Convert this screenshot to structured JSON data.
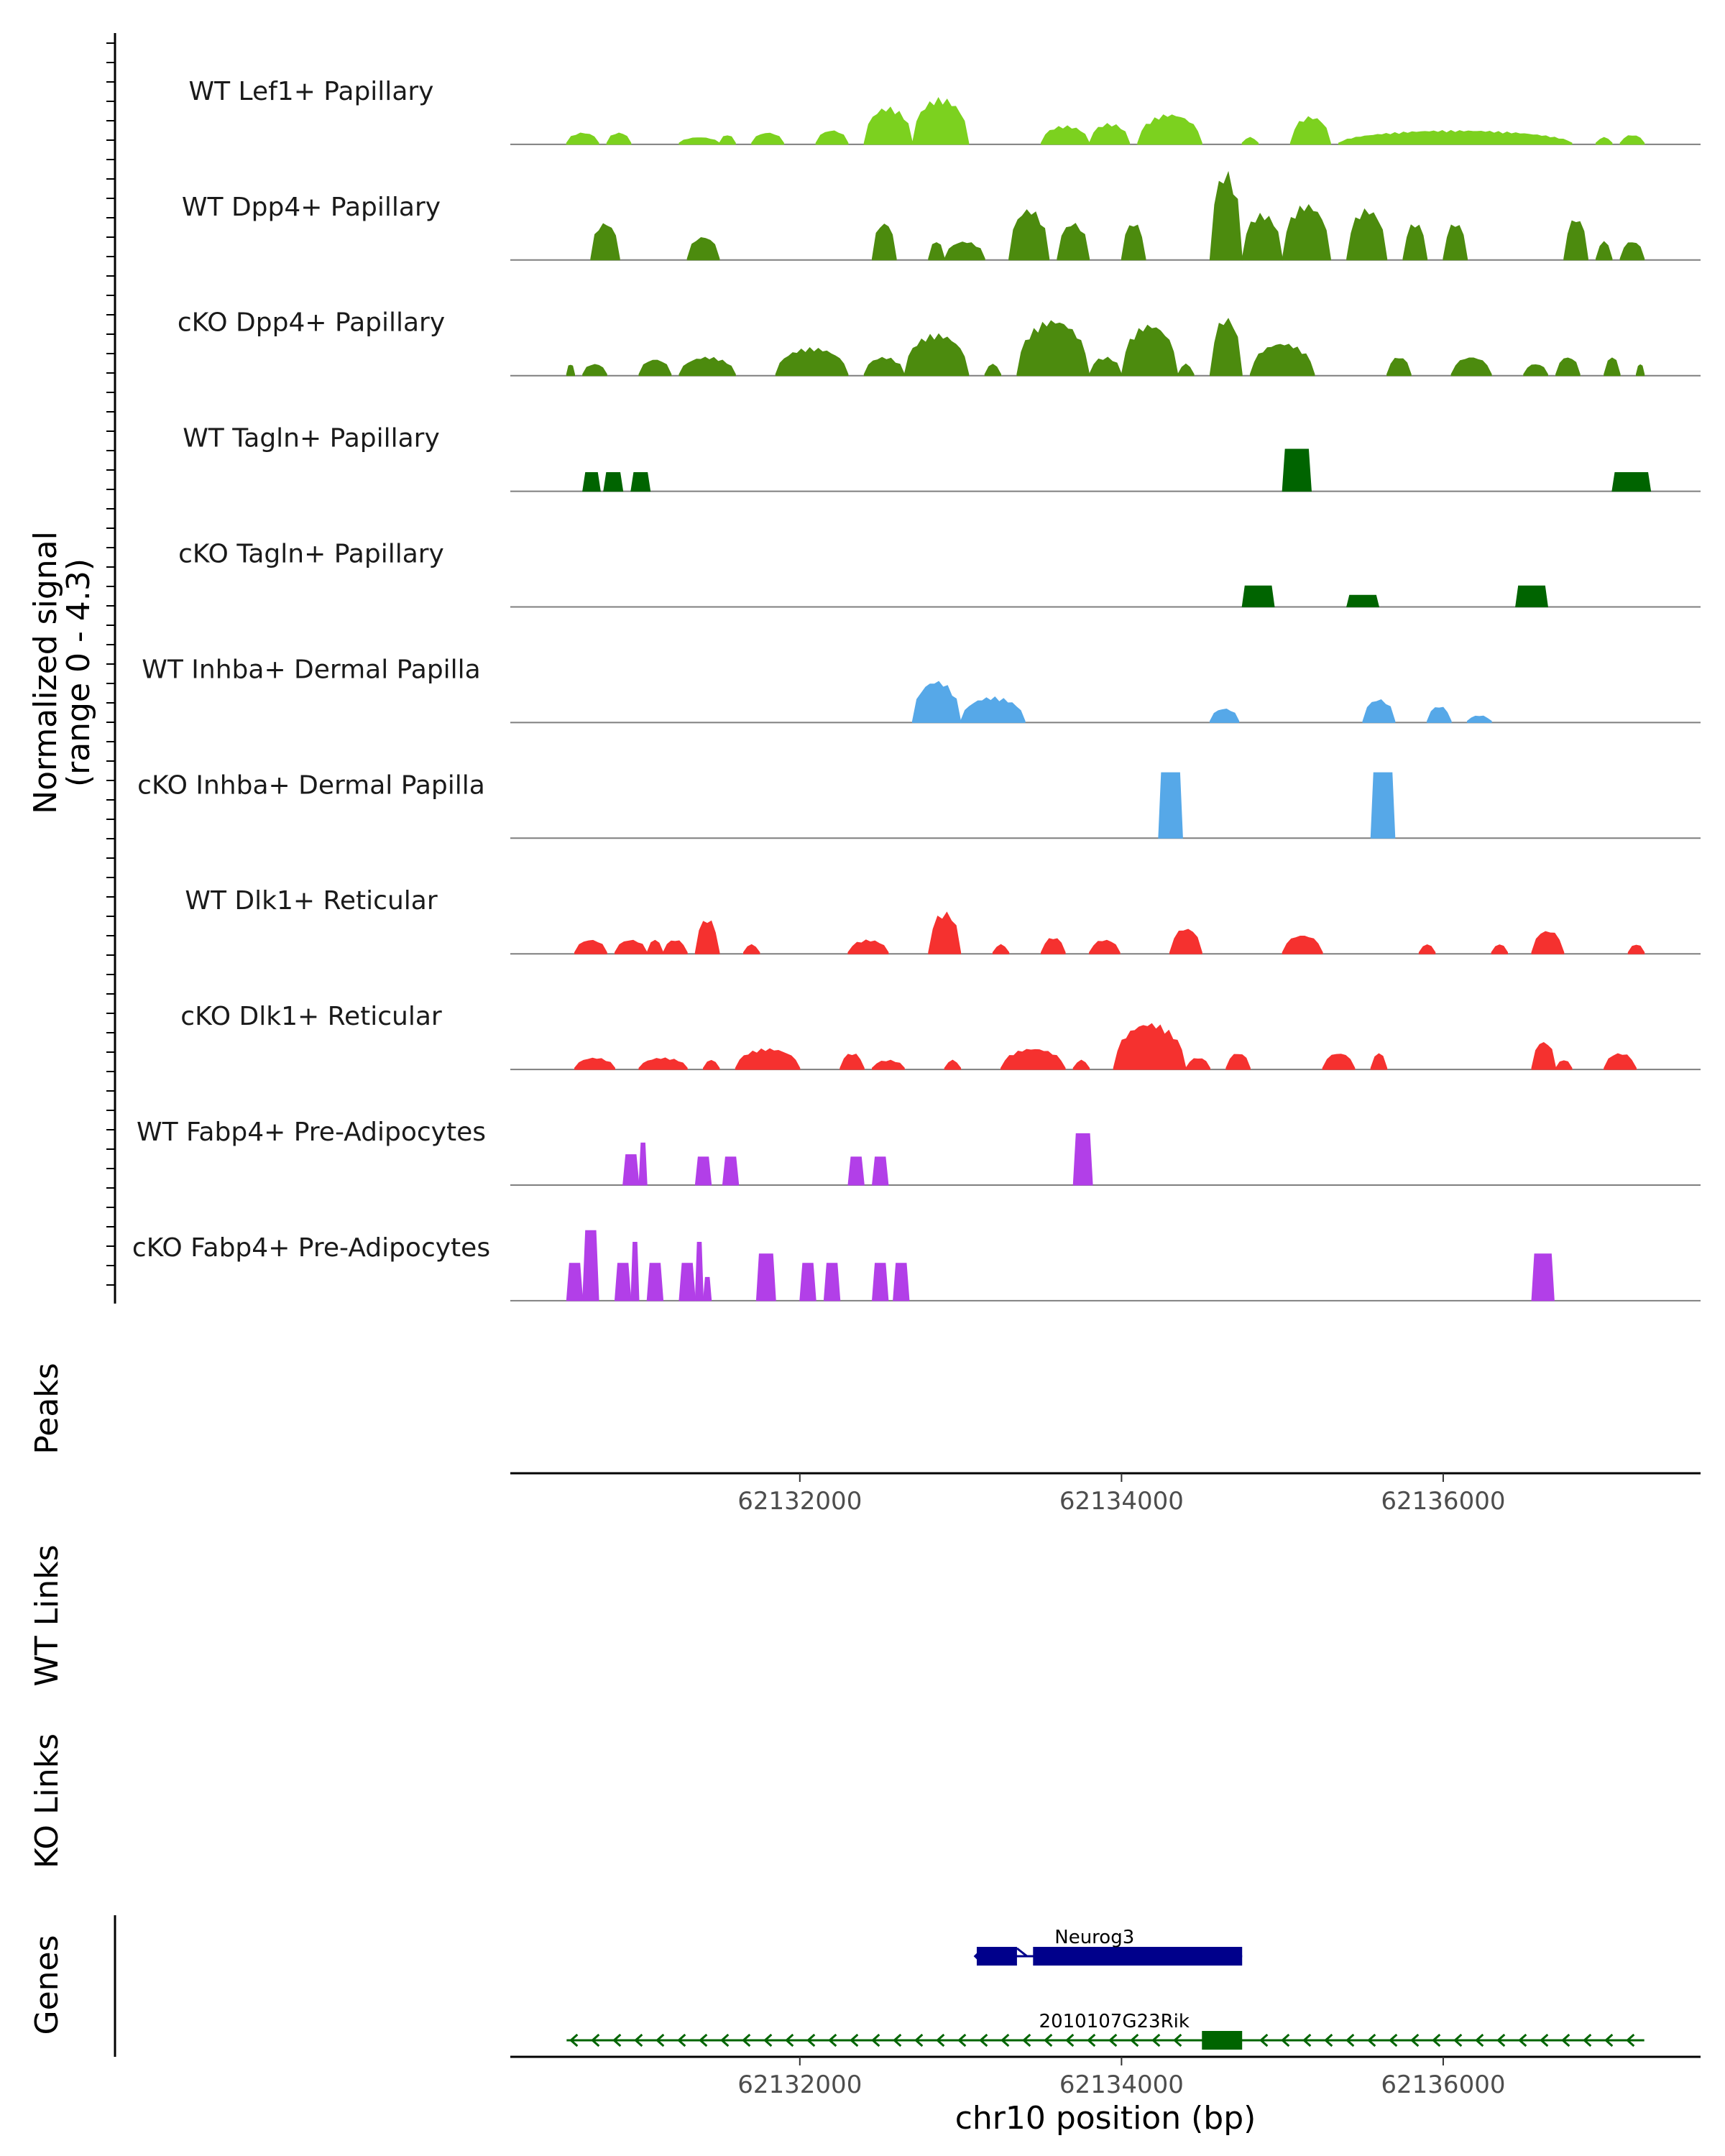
{
  "chart_data": {
    "type": "coverage",
    "region": "chr10",
    "xlim": [
      62130200,
      62137600
    ],
    "x_ticks": [
      62132000,
      62134000,
      62136000
    ],
    "x_tick_labels": [
      "62132000",
      "62134000",
      "62136000"
    ],
    "xlabel": "chr10 position (bp)",
    "ylabel_line1": "Normalized signal",
    "ylabel_line2": "(range 0 - 4.3)",
    "ylim": [
      0,
      4.3
    ],
    "track_labels": {
      "peaks": "Peaks",
      "wt_links": "WT Links",
      "ko_links": "KO Links",
      "genes": "Genes"
    },
    "tracks": [
      {
        "name": "WT Lef1+ Papillary",
        "color": "#7CD11F",
        "mode": "smooth",
        "segments": [
          [
            62130550,
            62130750,
            0.5
          ],
          [
            62130800,
            62130950,
            0.5
          ],
          [
            62131250,
            62131500,
            0.3
          ],
          [
            62131500,
            62131600,
            0.4
          ],
          [
            62131700,
            62131900,
            0.5
          ],
          [
            62132100,
            62132300,
            0.6
          ],
          [
            62132400,
            62132700,
            1.6
          ],
          [
            62132700,
            62133050,
            2.0
          ],
          [
            62133500,
            62133800,
            0.8
          ],
          [
            62133800,
            62134050,
            0.9
          ],
          [
            62134100,
            62134500,
            1.3
          ],
          [
            62134750,
            62134850,
            0.3
          ],
          [
            62135050,
            62135300,
            1.2
          ],
          [
            62135350,
            62136800,
            0.6
          ],
          [
            62136950,
            62137050,
            0.3
          ],
          [
            62137100,
            62137250,
            0.4
          ]
        ]
      },
      {
        "name": "WT Dpp4+ Papillary",
        "color": "#4C8B0E",
        "mode": "smooth",
        "segments": [
          [
            62130700,
            62130880,
            1.6
          ],
          [
            62131300,
            62131500,
            1.0
          ],
          [
            62132450,
            62132600,
            1.6
          ],
          [
            62132800,
            62132900,
            0.8
          ],
          [
            62132900,
            62133150,
            0.8
          ],
          [
            62133300,
            62133550,
            2.2
          ],
          [
            62133600,
            62133800,
            1.6
          ],
          [
            62134000,
            62134150,
            1.6
          ],
          [
            62134550,
            62134750,
            3.8
          ],
          [
            62134750,
            62135000,
            2.0
          ],
          [
            62135000,
            62135300,
            2.4
          ],
          [
            62135400,
            62135650,
            2.2
          ],
          [
            62135750,
            62135900,
            1.6
          ],
          [
            62136000,
            62136150,
            1.6
          ],
          [
            62136750,
            62136900,
            1.8
          ],
          [
            62136950,
            62137050,
            0.8
          ],
          [
            62137100,
            62137250,
            0.8
          ]
        ]
      },
      {
        "name": "cKO Dpp4+ Papillary",
        "color": "#4C8B0E",
        "mode": "smooth",
        "segments": [
          [
            62130550,
            62130600,
            0.5
          ],
          [
            62130650,
            62130800,
            0.5
          ],
          [
            62131000,
            62131200,
            0.7
          ],
          [
            62131250,
            62131600,
            0.8
          ],
          [
            62131850,
            62132300,
            1.2
          ],
          [
            62132400,
            62132650,
            0.8
          ],
          [
            62132650,
            62133050,
            1.8
          ],
          [
            62133150,
            62133250,
            0.5
          ],
          [
            62133350,
            62133800,
            2.4
          ],
          [
            62133800,
            62134000,
            0.8
          ],
          [
            62134000,
            62134350,
            2.2
          ],
          [
            62134350,
            62134450,
            0.5
          ],
          [
            62134550,
            62134750,
            2.5
          ],
          [
            62134800,
            62135200,
            1.4
          ],
          [
            62135650,
            62135800,
            0.8
          ],
          [
            62136050,
            62136300,
            0.8
          ],
          [
            62136500,
            62136650,
            0.5
          ],
          [
            62136700,
            62136850,
            0.8
          ],
          [
            62137000,
            62137100,
            0.8
          ],
          [
            62137200,
            62137250,
            0.5
          ]
        ]
      },
      {
        "name": "WT Tagln+ Papillary",
        "color": "#006400",
        "mode": "block",
        "segments": [
          [
            62130650,
            62130760,
            0.8
          ],
          [
            62130780,
            62130900,
            0.8
          ],
          [
            62130950,
            62131070,
            0.8
          ],
          [
            62135000,
            62135180,
            1.8
          ],
          [
            62137050,
            62137290,
            0.8
          ]
        ]
      },
      {
        "name": "cKO Tagln+ Papillary",
        "color": "#006400",
        "mode": "block",
        "segments": [
          [
            62134750,
            62134950,
            0.9
          ],
          [
            62135400,
            62135600,
            0.5
          ],
          [
            62136450,
            62136650,
            0.9
          ]
        ]
      },
      {
        "name": "WT Inhba+ Dermal Papilla",
        "color": "#56A8E8",
        "mode": "smooth",
        "segments": [
          [
            62132700,
            62133000,
            1.8
          ],
          [
            62133000,
            62133400,
            1.1
          ],
          [
            62134550,
            62134730,
            0.6
          ],
          [
            62135500,
            62135700,
            1.0
          ],
          [
            62135900,
            62136050,
            0.7
          ],
          [
            62136150,
            62136300,
            0.3
          ]
        ]
      },
      {
        "name": "cKO Inhba+ Dermal Papilla",
        "color": "#56A8E8",
        "mode": "block",
        "segments": [
          [
            62134230,
            62134380,
            2.8
          ],
          [
            62135550,
            62135700,
            2.8
          ]
        ]
      },
      {
        "name": "WT Dlk1+ Reticular",
        "color": "#F5312F",
        "mode": "smooth",
        "segments": [
          [
            62130600,
            62130800,
            0.6
          ],
          [
            62130850,
            62131050,
            0.6
          ],
          [
            62131050,
            62131150,
            0.6
          ],
          [
            62131150,
            62131300,
            0.6
          ],
          [
            62131350,
            62131500,
            1.5
          ],
          [
            62131650,
            62131750,
            0.4
          ],
          [
            62132300,
            62132550,
            0.6
          ],
          [
            62132800,
            62133000,
            1.8
          ],
          [
            62133200,
            62133300,
            0.4
          ],
          [
            62133500,
            62133650,
            0.7
          ],
          [
            62133800,
            62133990,
            0.6
          ],
          [
            62134300,
            62134500,
            1.1
          ],
          [
            62135000,
            62135250,
            0.8
          ],
          [
            62135850,
            62135950,
            0.4
          ],
          [
            62136300,
            62136400,
            0.4
          ],
          [
            62136550,
            62136750,
            1.0
          ],
          [
            62137150,
            62137250,
            0.4
          ]
        ]
      },
      {
        "name": "cKO Dlk1+ Reticular",
        "color": "#F5312F",
        "mode": "smooth",
        "segments": [
          [
            62130600,
            62130850,
            0.5
          ],
          [
            62131000,
            62131300,
            0.5
          ],
          [
            62131400,
            62131500,
            0.4
          ],
          [
            62131600,
            62132000,
            0.9
          ],
          [
            62132250,
            62132400,
            0.7
          ],
          [
            62132450,
            62132650,
            0.4
          ],
          [
            62132900,
            62133000,
            0.4
          ],
          [
            62133250,
            62133650,
            0.9
          ],
          [
            62133700,
            62133800,
            0.4
          ],
          [
            62133950,
            62134400,
            2.0
          ],
          [
            62134400,
            62134550,
            0.5
          ],
          [
            62134650,
            62134800,
            0.7
          ],
          [
            62135250,
            62135450,
            0.7
          ],
          [
            62135550,
            62135650,
            0.7
          ],
          [
            62136550,
            62136700,
            1.2
          ],
          [
            62136700,
            62136800,
            0.4
          ],
          [
            62137000,
            62137200,
            0.7
          ]
        ]
      },
      {
        "name": "WT Fabp4+ Pre-Adipocytes",
        "color": "#B23FE8",
        "mode": "block",
        "segments": [
          [
            62130900,
            62131000,
            1.3
          ],
          [
            62131000,
            62131050,
            1.8
          ],
          [
            62131350,
            62131450,
            1.2
          ],
          [
            62131520,
            62131620,
            1.2
          ],
          [
            62132300,
            62132400,
            1.2
          ],
          [
            62132450,
            62132550,
            1.2
          ],
          [
            62133700,
            62133820,
            2.2
          ]
        ]
      },
      {
        "name": "cKO Fabp4+ Pre-Adipocytes",
        "color": "#B23FE8",
        "mode": "block",
        "segments": [
          [
            62130550,
            62130650,
            1.6
          ],
          [
            62130650,
            62130750,
            3.0
          ],
          [
            62130850,
            62130950,
            1.6
          ],
          [
            62130950,
            62131000,
            2.5
          ],
          [
            62131050,
            62131150,
            1.6
          ],
          [
            62131250,
            62131350,
            1.6
          ],
          [
            62131350,
            62131400,
            2.5
          ],
          [
            62131400,
            62131450,
            1.0
          ],
          [
            62131730,
            62131850,
            2.0
          ],
          [
            62132000,
            62132100,
            1.6
          ],
          [
            62132150,
            62132250,
            1.6
          ],
          [
            62132450,
            62132550,
            1.6
          ],
          [
            62132580,
            62132680,
            1.6
          ],
          [
            62136550,
            62136690,
            2.0
          ]
        ]
      }
    ],
    "genes": [
      {
        "name": "Neurog3",
        "strand": "-",
        "color": "#00008B",
        "start": 62133090,
        "end": 62134750,
        "exons": [
          [
            62133100,
            62133350
          ],
          [
            62133450,
            62134750
          ]
        ]
      },
      {
        "name": "2010107G23Rik",
        "strand": "-",
        "color": "#006400",
        "start": 62130550,
        "end": 62137250,
        "exons": [
          [
            62134500,
            62134750
          ]
        ]
      }
    ]
  }
}
